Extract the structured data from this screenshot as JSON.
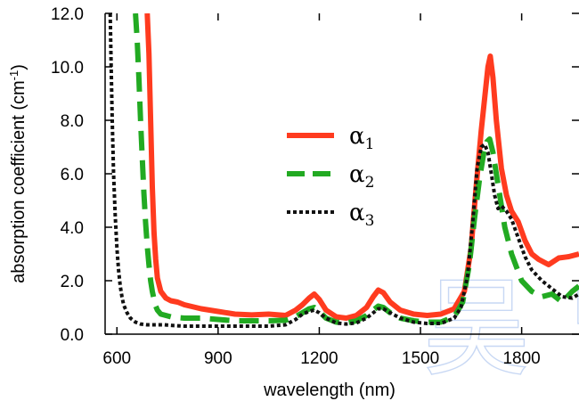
{
  "chart_data": {
    "type": "line",
    "xlabel": "wavelength (nm)",
    "ylabel": "absorption coefficient (cm",
    "ylabel_sup": "-1",
    "ylabel_close": ")",
    "xlim": [
      565,
      1970
    ],
    "ylim": [
      0,
      12
    ],
    "x_ticks": [
      600,
      900,
      1200,
      1500,
      1800
    ],
    "x_tick_labels": [
      "600",
      "900",
      "1200",
      "1500",
      "1800"
    ],
    "y_ticks": [
      0,
      2,
      4,
      6,
      8,
      10,
      12
    ],
    "y_tick_labels": [
      "0.0",
      "2.0",
      "4.0",
      "6.0",
      "8.0",
      "10.0",
      "12.0"
    ],
    "grid": false,
    "legend_position": "center",
    "watermark": "吴 曾",
    "series": [
      {
        "name": "α",
        "subscript": "1",
        "color": "#ff3b1f",
        "style": "solid",
        "x": [
          690,
          695,
          700,
          705,
          710,
          715,
          720,
          730,
          745,
          760,
          780,
          800,
          850,
          900,
          950,
          1000,
          1050,
          1100,
          1130,
          1150,
          1170,
          1185,
          1200,
          1220,
          1250,
          1280,
          1310,
          1340,
          1360,
          1375,
          1390,
          1410,
          1440,
          1480,
          1520,
          1560,
          1600,
          1630,
          1650,
          1665,
          1680,
          1690,
          1700,
          1707,
          1715,
          1725,
          1740,
          1755,
          1770,
          1790,
          1810,
          1830,
          1850,
          1880,
          1910,
          1940,
          1970
        ],
        "y": [
          12,
          10.5,
          8.0,
          5.5,
          3.8,
          2.8,
          2.1,
          1.6,
          1.35,
          1.25,
          1.2,
          1.1,
          0.95,
          0.85,
          0.75,
          0.72,
          0.75,
          0.7,
          0.9,
          1.1,
          1.35,
          1.5,
          1.3,
          0.9,
          0.65,
          0.6,
          0.7,
          1.0,
          1.4,
          1.65,
          1.55,
          1.2,
          0.9,
          0.75,
          0.7,
          0.75,
          0.95,
          1.6,
          3.2,
          5.5,
          7.6,
          8.8,
          10.0,
          10.4,
          9.6,
          8.0,
          6.2,
          5.2,
          4.6,
          4.2,
          3.5,
          3.0,
          2.8,
          2.6,
          2.85,
          2.9,
          3.0
        ]
      },
      {
        "name": "α",
        "subscript": "2",
        "color": "#22aa22",
        "style": "dashed",
        "x": [
          655,
          660,
          665,
          670,
          675,
          680,
          685,
          690,
          695,
          700,
          705,
          710,
          715,
          720,
          730,
          745,
          760,
          780,
          800,
          850,
          900,
          950,
          1000,
          1050,
          1100,
          1130,
          1150,
          1170,
          1185,
          1200,
          1220,
          1250,
          1280,
          1310,
          1340,
          1360,
          1375,
          1390,
          1410,
          1440,
          1480,
          1520,
          1560,
          1600,
          1625,
          1645,
          1660,
          1675,
          1688,
          1697,
          1705,
          1715,
          1730,
          1750,
          1770,
          1800,
          1830,
          1860,
          1890,
          1920,
          1950,
          1970
        ],
        "y": [
          12,
          11.0,
          9.6,
          8.0,
          6.6,
          5.3,
          4.2,
          3.3,
          2.6,
          2.0,
          1.6,
          1.3,
          1.05,
          0.9,
          0.75,
          0.7,
          0.65,
          0.62,
          0.6,
          0.6,
          0.55,
          0.5,
          0.5,
          0.5,
          0.52,
          0.65,
          0.8,
          0.95,
          1.0,
          0.85,
          0.6,
          0.45,
          0.42,
          0.5,
          0.7,
          0.9,
          1.05,
          1.0,
          0.8,
          0.6,
          0.5,
          0.45,
          0.45,
          0.65,
          1.2,
          2.6,
          4.3,
          5.8,
          6.8,
          7.2,
          7.3,
          6.8,
          5.6,
          4.0,
          3.0,
          2.0,
          1.6,
          1.4,
          1.5,
          1.2,
          1.6,
          1.8
        ]
      },
      {
        "name": "α",
        "subscript": "3",
        "color": "#111111",
        "style": "dotted",
        "x": [
          580,
          583,
          586,
          590,
          595,
          600,
          605,
          610,
          615,
          620,
          630,
          640,
          655,
          670,
          690,
          710,
          740,
          770,
          800,
          850,
          900,
          950,
          1000,
          1050,
          1100,
          1130,
          1150,
          1170,
          1185,
          1200,
          1220,
          1250,
          1280,
          1310,
          1340,
          1360,
          1375,
          1390,
          1410,
          1440,
          1480,
          1520,
          1560,
          1600,
          1620,
          1640,
          1655,
          1668,
          1680,
          1690,
          1700,
          1710,
          1720,
          1730,
          1740,
          1755,
          1770,
          1790,
          1810,
          1830,
          1860,
          1890,
          1920,
          1950,
          1970
        ],
        "y": [
          12,
          10.0,
          8.0,
          6.0,
          4.4,
          3.2,
          2.4,
          1.8,
          1.4,
          1.1,
          0.8,
          0.6,
          0.45,
          0.38,
          0.35,
          0.35,
          0.35,
          0.32,
          0.3,
          0.3,
          0.3,
          0.3,
          0.3,
          0.3,
          0.35,
          0.55,
          0.75,
          0.85,
          0.9,
          0.8,
          0.6,
          0.42,
          0.38,
          0.42,
          0.6,
          0.8,
          0.95,
          0.95,
          0.8,
          0.6,
          0.45,
          0.4,
          0.4,
          0.6,
          1.0,
          2.2,
          4.2,
          6.2,
          7.0,
          7.1,
          6.8,
          6.0,
          5.2,
          4.7,
          4.8,
          4.6,
          4.3,
          3.6,
          2.9,
          2.4,
          2.0,
          1.7,
          1.4,
          1.35,
          1.5
        ]
      }
    ]
  }
}
